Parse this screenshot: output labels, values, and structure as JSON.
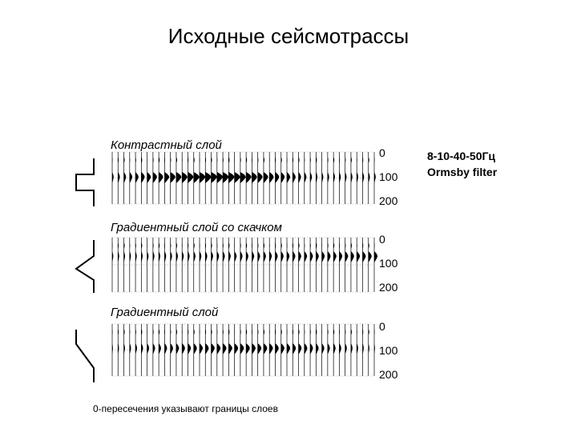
{
  "title": "Исходные сейсмотрассы",
  "filter": {
    "line1": "8-10-40-50Гц",
    "line2": "Ormsby filter"
  },
  "panels": [
    {
      "label": "Контрастный слой",
      "ticks": [
        "0",
        "100",
        "200"
      ]
    },
    {
      "label": "Градиентный слой со скачком",
      "ticks": [
        "0",
        "100",
        "200"
      ]
    },
    {
      "label": "Градиентный слой",
      "ticks": [
        "0",
        "100",
        "200"
      ]
    }
  ],
  "footer": "0-пересечения указывают границы слоев",
  "colors": {
    "ink": "#000000",
    "background": "#ffffff"
  },
  "icons": [
    "contrast-layer-step-icon",
    "gradient-jump-profile-icon",
    "gradient-profile-icon"
  ]
}
